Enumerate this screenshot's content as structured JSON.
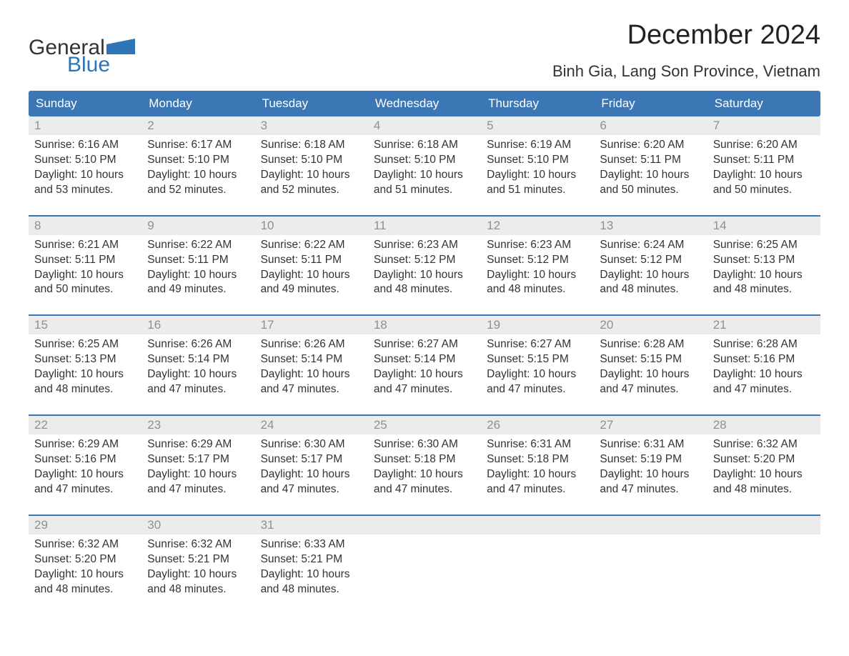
{
  "branding": {
    "logo_word1": "General",
    "logo_word2": "Blue",
    "flag_color": "#2e75b6",
    "text_color_dark": "#333333",
    "text_color_blue": "#2e75b6"
  },
  "header": {
    "month_title": "December 2024",
    "location": "Binh Gia, Lang Son Province, Vietnam"
  },
  "colors": {
    "header_bg": "#3b77b5",
    "header_text": "#ffffff",
    "daynum_bg": "#ececec",
    "daynum_text": "#909090",
    "week_border": "#3b77b5",
    "body_text": "#333333",
    "page_bg": "#ffffff"
  },
  "typography": {
    "title_fontsize": 38,
    "location_fontsize": 22,
    "dayheader_fontsize": 17,
    "daynum_fontsize": 17,
    "body_fontsize": 15.5
  },
  "calendar": {
    "type": "table",
    "day_names": [
      "Sunday",
      "Monday",
      "Tuesday",
      "Wednesday",
      "Thursday",
      "Friday",
      "Saturday"
    ],
    "weeks": [
      [
        {
          "num": "1",
          "sunrise": "Sunrise: 6:16 AM",
          "sunset": "Sunset: 5:10 PM",
          "daylight": "Daylight: 10 hours and 53 minutes."
        },
        {
          "num": "2",
          "sunrise": "Sunrise: 6:17 AM",
          "sunset": "Sunset: 5:10 PM",
          "daylight": "Daylight: 10 hours and 52 minutes."
        },
        {
          "num": "3",
          "sunrise": "Sunrise: 6:18 AM",
          "sunset": "Sunset: 5:10 PM",
          "daylight": "Daylight: 10 hours and 52 minutes."
        },
        {
          "num": "4",
          "sunrise": "Sunrise: 6:18 AM",
          "sunset": "Sunset: 5:10 PM",
          "daylight": "Daylight: 10 hours and 51 minutes."
        },
        {
          "num": "5",
          "sunrise": "Sunrise: 6:19 AM",
          "sunset": "Sunset: 5:10 PM",
          "daylight": "Daylight: 10 hours and 51 minutes."
        },
        {
          "num": "6",
          "sunrise": "Sunrise: 6:20 AM",
          "sunset": "Sunset: 5:11 PM",
          "daylight": "Daylight: 10 hours and 50 minutes."
        },
        {
          "num": "7",
          "sunrise": "Sunrise: 6:20 AM",
          "sunset": "Sunset: 5:11 PM",
          "daylight": "Daylight: 10 hours and 50 minutes."
        }
      ],
      [
        {
          "num": "8",
          "sunrise": "Sunrise: 6:21 AM",
          "sunset": "Sunset: 5:11 PM",
          "daylight": "Daylight: 10 hours and 50 minutes."
        },
        {
          "num": "9",
          "sunrise": "Sunrise: 6:22 AM",
          "sunset": "Sunset: 5:11 PM",
          "daylight": "Daylight: 10 hours and 49 minutes."
        },
        {
          "num": "10",
          "sunrise": "Sunrise: 6:22 AM",
          "sunset": "Sunset: 5:11 PM",
          "daylight": "Daylight: 10 hours and 49 minutes."
        },
        {
          "num": "11",
          "sunrise": "Sunrise: 6:23 AM",
          "sunset": "Sunset: 5:12 PM",
          "daylight": "Daylight: 10 hours and 48 minutes."
        },
        {
          "num": "12",
          "sunrise": "Sunrise: 6:23 AM",
          "sunset": "Sunset: 5:12 PM",
          "daylight": "Daylight: 10 hours and 48 minutes."
        },
        {
          "num": "13",
          "sunrise": "Sunrise: 6:24 AM",
          "sunset": "Sunset: 5:12 PM",
          "daylight": "Daylight: 10 hours and 48 minutes."
        },
        {
          "num": "14",
          "sunrise": "Sunrise: 6:25 AM",
          "sunset": "Sunset: 5:13 PM",
          "daylight": "Daylight: 10 hours and 48 minutes."
        }
      ],
      [
        {
          "num": "15",
          "sunrise": "Sunrise: 6:25 AM",
          "sunset": "Sunset: 5:13 PM",
          "daylight": "Daylight: 10 hours and 48 minutes."
        },
        {
          "num": "16",
          "sunrise": "Sunrise: 6:26 AM",
          "sunset": "Sunset: 5:14 PM",
          "daylight": "Daylight: 10 hours and 47 minutes."
        },
        {
          "num": "17",
          "sunrise": "Sunrise: 6:26 AM",
          "sunset": "Sunset: 5:14 PM",
          "daylight": "Daylight: 10 hours and 47 minutes."
        },
        {
          "num": "18",
          "sunrise": "Sunrise: 6:27 AM",
          "sunset": "Sunset: 5:14 PM",
          "daylight": "Daylight: 10 hours and 47 minutes."
        },
        {
          "num": "19",
          "sunrise": "Sunrise: 6:27 AM",
          "sunset": "Sunset: 5:15 PM",
          "daylight": "Daylight: 10 hours and 47 minutes."
        },
        {
          "num": "20",
          "sunrise": "Sunrise: 6:28 AM",
          "sunset": "Sunset: 5:15 PM",
          "daylight": "Daylight: 10 hours and 47 minutes."
        },
        {
          "num": "21",
          "sunrise": "Sunrise: 6:28 AM",
          "sunset": "Sunset: 5:16 PM",
          "daylight": "Daylight: 10 hours and 47 minutes."
        }
      ],
      [
        {
          "num": "22",
          "sunrise": "Sunrise: 6:29 AM",
          "sunset": "Sunset: 5:16 PM",
          "daylight": "Daylight: 10 hours and 47 minutes."
        },
        {
          "num": "23",
          "sunrise": "Sunrise: 6:29 AM",
          "sunset": "Sunset: 5:17 PM",
          "daylight": "Daylight: 10 hours and 47 minutes."
        },
        {
          "num": "24",
          "sunrise": "Sunrise: 6:30 AM",
          "sunset": "Sunset: 5:17 PM",
          "daylight": "Daylight: 10 hours and 47 minutes."
        },
        {
          "num": "25",
          "sunrise": "Sunrise: 6:30 AM",
          "sunset": "Sunset: 5:18 PM",
          "daylight": "Daylight: 10 hours and 47 minutes."
        },
        {
          "num": "26",
          "sunrise": "Sunrise: 6:31 AM",
          "sunset": "Sunset: 5:18 PM",
          "daylight": "Daylight: 10 hours and 47 minutes."
        },
        {
          "num": "27",
          "sunrise": "Sunrise: 6:31 AM",
          "sunset": "Sunset: 5:19 PM",
          "daylight": "Daylight: 10 hours and 47 minutes."
        },
        {
          "num": "28",
          "sunrise": "Sunrise: 6:32 AM",
          "sunset": "Sunset: 5:20 PM",
          "daylight": "Daylight: 10 hours and 48 minutes."
        }
      ],
      [
        {
          "num": "29",
          "sunrise": "Sunrise: 6:32 AM",
          "sunset": "Sunset: 5:20 PM",
          "daylight": "Daylight: 10 hours and 48 minutes."
        },
        {
          "num": "30",
          "sunrise": "Sunrise: 6:32 AM",
          "sunset": "Sunset: 5:21 PM",
          "daylight": "Daylight: 10 hours and 48 minutes."
        },
        {
          "num": "31",
          "sunrise": "Sunrise: 6:33 AM",
          "sunset": "Sunset: 5:21 PM",
          "daylight": "Daylight: 10 hours and 48 minutes."
        },
        null,
        null,
        null,
        null
      ]
    ]
  }
}
